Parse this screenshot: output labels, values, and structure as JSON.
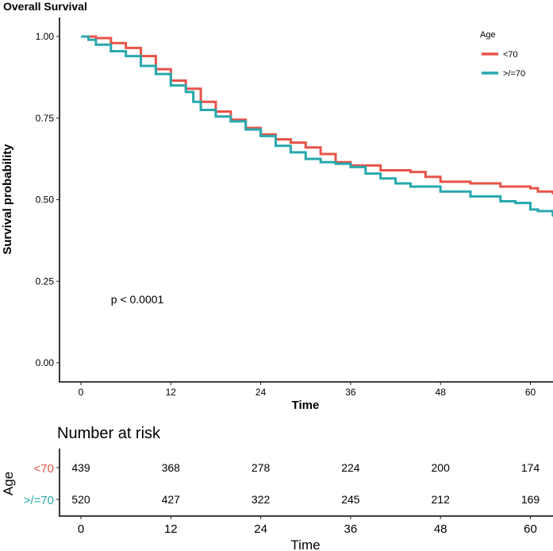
{
  "chart_data": [
    {
      "type": "line",
      "subtype": "kaplan-meier step",
      "title": "Overall Survival",
      "xlabel": "Time",
      "ylabel": "Survival probability",
      "xlim": [
        -3,
        63
      ],
      "ylim": [
        -0.06,
        1.06
      ],
      "xticks": [
        "0",
        "12",
        "24",
        "36",
        "48",
        "60"
      ],
      "xtick_values": [
        0,
        12,
        24,
        36,
        48,
        60
      ],
      "yticks": [
        "0.00",
        "0.25",
        "0.50",
        "0.75",
        "1.00"
      ],
      "ytick_values": [
        0,
        0.25,
        0.5,
        0.75,
        1.0
      ],
      "grid": false,
      "annotation": "p < 0.0001",
      "annotation_pos": [
        4,
        0.195
      ],
      "legend": {
        "title": "Age",
        "placement": "top-right"
      },
      "series": [
        {
          "name": "<70",
          "color": "#E8534A",
          "x": [
            0,
            2,
            4,
            6,
            8,
            10,
            12,
            14,
            16,
            18,
            20,
            22,
            24,
            26,
            28,
            30,
            32,
            34,
            36,
            40,
            44,
            46,
            48,
            52,
            56,
            60,
            61,
            63
          ],
          "y": [
            1,
            0.995,
            0.98,
            0.965,
            0.94,
            0.9,
            0.865,
            0.84,
            0.8,
            0.77,
            0.745,
            0.72,
            0.7,
            0.685,
            0.675,
            0.66,
            0.64,
            0.615,
            0.605,
            0.59,
            0.585,
            0.57,
            0.555,
            0.55,
            0.54,
            0.535,
            0.525,
            0.52
          ]
        },
        {
          "name": ">/=70",
          "color": "#27A8AE",
          "x": [
            0,
            1,
            2,
            4,
            6,
            8,
            10,
            12,
            14,
            15,
            16,
            18,
            20,
            22,
            24,
            26,
            28,
            30,
            32,
            34,
            36,
            38,
            40,
            42,
            44,
            48,
            52,
            56,
            58,
            60,
            61,
            63
          ],
          "y": [
            1,
            0.99,
            0.975,
            0.955,
            0.94,
            0.91,
            0.885,
            0.85,
            0.83,
            0.8,
            0.775,
            0.755,
            0.74,
            0.715,
            0.695,
            0.665,
            0.645,
            0.625,
            0.615,
            0.61,
            0.6,
            0.58,
            0.565,
            0.55,
            0.54,
            0.525,
            0.51,
            0.495,
            0.49,
            0.47,
            0.465,
            0.452
          ]
        }
      ]
    },
    {
      "type": "table",
      "title": "Number at risk",
      "ylabel": "Age",
      "xlabel": "Time",
      "xticks": [
        "0",
        "12",
        "24",
        "36",
        "48",
        "60"
      ],
      "xtick_values": [
        0,
        12,
        24,
        36,
        48,
        60
      ],
      "rows": [
        {
          "name": "<70",
          "color": "#E8534A",
          "values": [
            "439",
            "368",
            "278",
            "224",
            "200",
            "174"
          ]
        },
        {
          "name": ">/=70",
          "color": "#27A8AE",
          "values": [
            "520",
            "427",
            "322",
            "245",
            "212",
            "169"
          ]
        }
      ]
    }
  ]
}
